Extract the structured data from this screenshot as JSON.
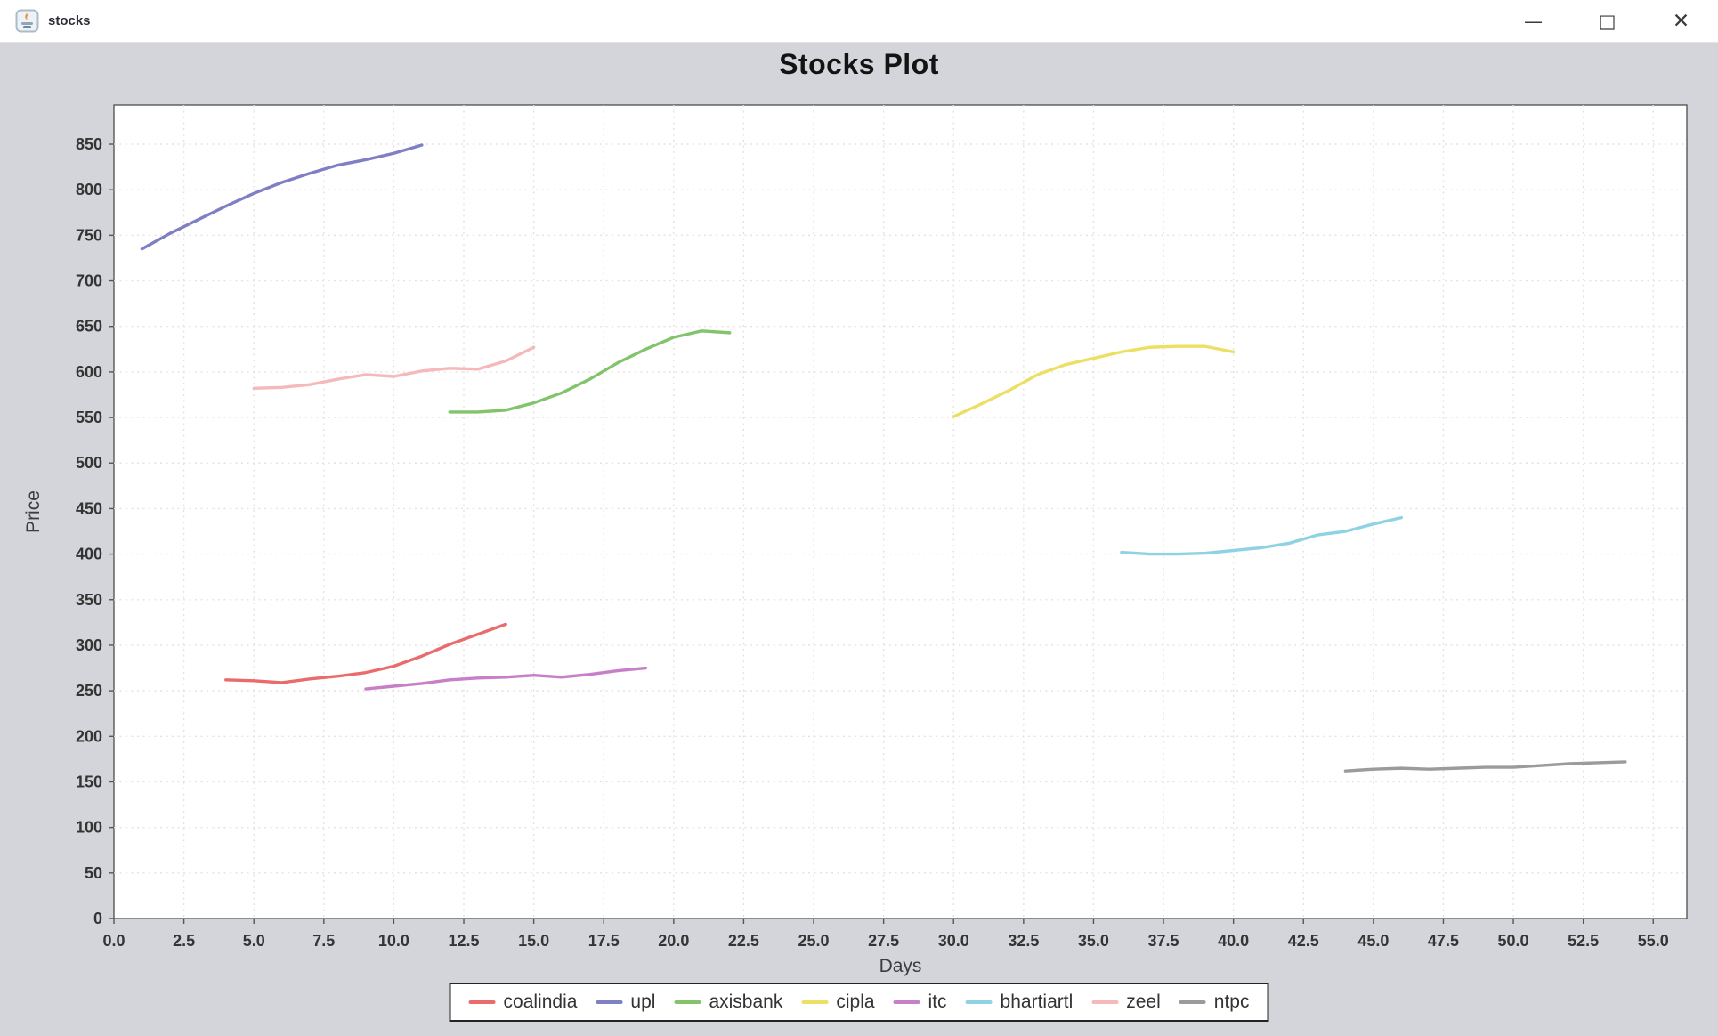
{
  "window": {
    "title": "stocks",
    "controls": [
      {
        "name": "minimize",
        "glyph": "—"
      },
      {
        "name": "maximize",
        "glyph": "□"
      },
      {
        "name": "close",
        "glyph": "✕"
      }
    ]
  },
  "chart_data": {
    "type": "line",
    "title": "Stocks Plot",
    "xlabel": "Days",
    "ylabel": "Price",
    "xlim": [
      0,
      56.2
    ],
    "ylim": [
      0,
      893
    ],
    "grid": true,
    "legend_position": "bottom",
    "x_ticks": [
      0,
      2.5,
      5,
      7.5,
      10,
      12.5,
      15,
      17.5,
      20,
      22.5,
      25,
      27.5,
      30,
      32.5,
      35,
      37.5,
      40,
      42.5,
      45,
      47.5,
      50,
      52.5,
      55
    ],
    "x_tick_labels": [
      "0.0",
      "2.5",
      "5.0",
      "7.5",
      "10.0",
      "12.5",
      "15.0",
      "17.5",
      "20.0",
      "22.5",
      "25.0",
      "27.5",
      "30.0",
      "32.5",
      "35.0",
      "37.5",
      "40.0",
      "42.5",
      "45.0",
      "47.5",
      "50.0",
      "52.5",
      "55.0"
    ],
    "y_ticks": [
      0,
      50,
      100,
      150,
      200,
      250,
      300,
      350,
      400,
      450,
      500,
      550,
      600,
      650,
      700,
      750,
      800,
      850
    ],
    "series": [
      {
        "name": "coalindia",
        "color": "#e96b6b",
        "x": [
          4,
          5,
          6,
          7,
          8,
          9,
          10,
          11,
          12,
          13,
          14
        ],
        "y": [
          262,
          261,
          259,
          263,
          266,
          270,
          277,
          288,
          301,
          312,
          323
        ]
      },
      {
        "name": "upl",
        "color": "#7f7fc5",
        "x": [
          1,
          2,
          3,
          4,
          5,
          6,
          7,
          8,
          9,
          10,
          11
        ],
        "y": [
          735,
          752,
          767,
          782,
          796,
          808,
          818,
          827,
          833,
          840,
          849
        ]
      },
      {
        "name": "axisbank",
        "color": "#83c36c",
        "x": [
          12,
          13,
          14,
          15,
          16,
          17,
          18,
          19,
          20,
          21,
          22
        ],
        "y": [
          556,
          556,
          558,
          566,
          577,
          592,
          610,
          625,
          638,
          645,
          643
        ]
      },
      {
        "name": "cipla",
        "color": "#ecdf63",
        "x": [
          30,
          31,
          32,
          33,
          34,
          35,
          36,
          37,
          38,
          39,
          40
        ],
        "y": [
          551,
          565,
          580,
          597,
          608,
          615,
          622,
          627,
          628,
          628,
          622
        ]
      },
      {
        "name": "itc",
        "color": "#c77fc7",
        "x": [
          9,
          10,
          11,
          12,
          13,
          14,
          15,
          16,
          17,
          18,
          19
        ],
        "y": [
          252,
          255,
          258,
          262,
          264,
          265,
          267,
          265,
          268,
          272,
          275
        ]
      },
      {
        "name": "bhartiartl",
        "color": "#8fd2e4",
        "x": [
          36,
          37,
          38,
          39,
          40,
          41,
          42,
          43,
          44,
          45,
          46
        ],
        "y": [
          402,
          400,
          400,
          401,
          404,
          407,
          412,
          421,
          425,
          433,
          440
        ]
      },
      {
        "name": "zeel",
        "color": "#f5b9ba",
        "x": [
          5,
          6,
          7,
          8,
          9,
          10,
          11,
          12,
          13,
          14,
          15
        ],
        "y": [
          582,
          583,
          586,
          592,
          597,
          595,
          601,
          604,
          603,
          612,
          627
        ]
      },
      {
        "name": "ntpc",
        "color": "#9b9b9b",
        "x": [
          44,
          45,
          46,
          47,
          48,
          49,
          50,
          51,
          52,
          53,
          54
        ],
        "y": [
          162,
          164,
          165,
          164,
          165,
          166,
          166,
          168,
          170,
          171,
          172
        ]
      }
    ]
  },
  "style": {
    "plot_bg": "#ffffff",
    "panel_bg": "#d3d5db",
    "grid_color": "#e6e1e1",
    "plot_border": "#4d4d4d",
    "tick_color": "#555555"
  }
}
